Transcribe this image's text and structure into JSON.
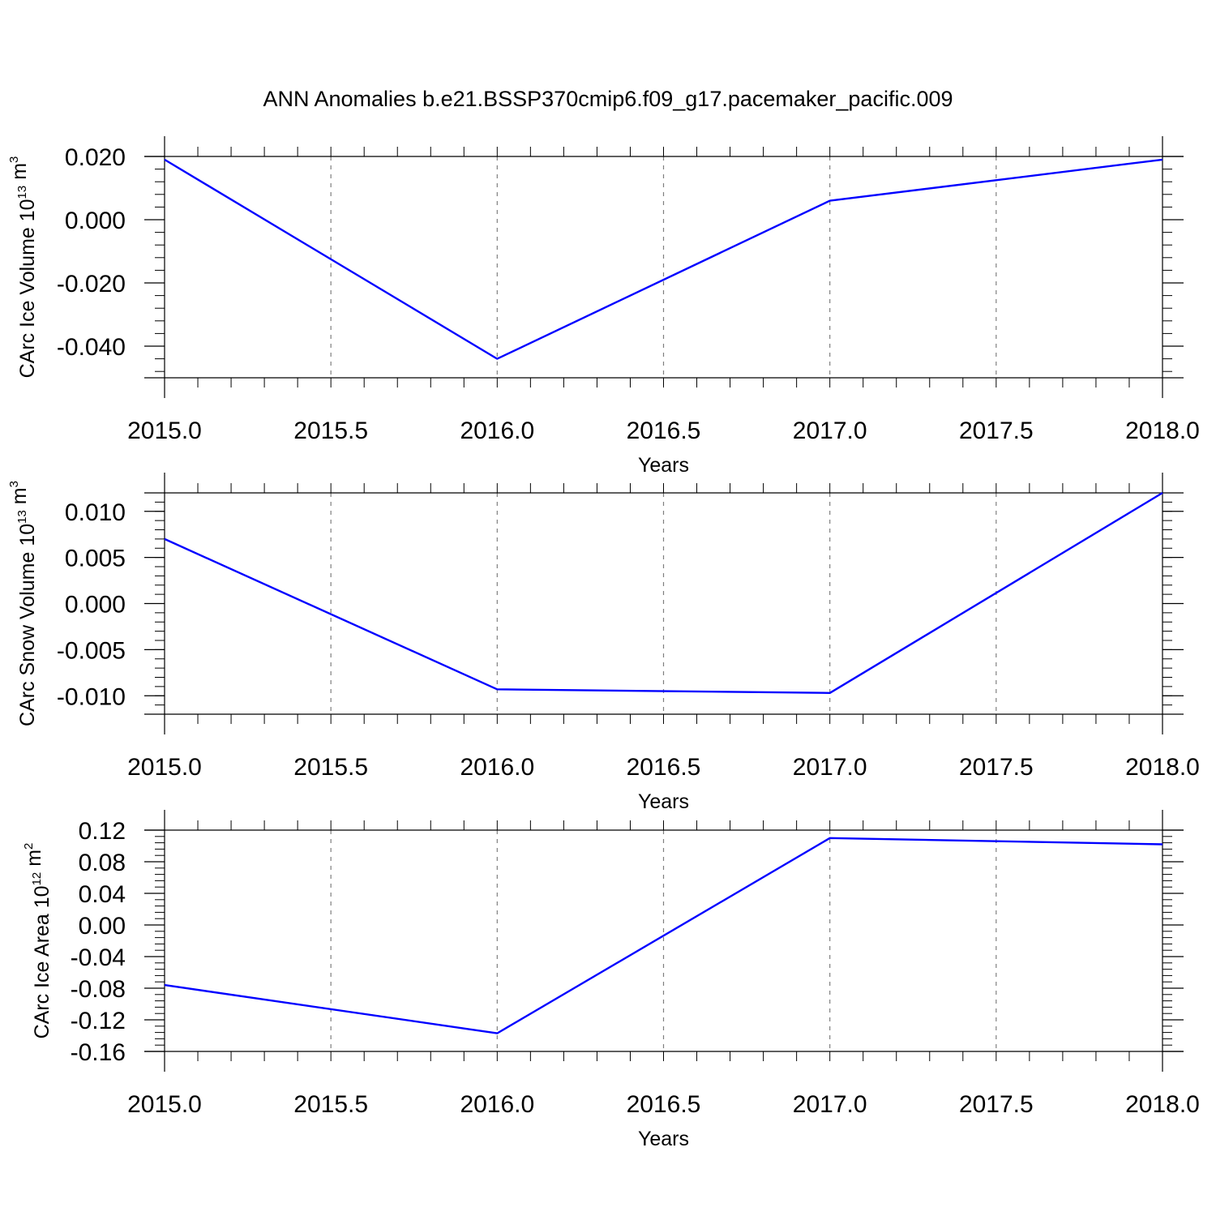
{
  "figure": {
    "title": "ANN Anomalies b.e21.BSSP370cmip6.f09_g17.pacemaker_pacific.009"
  },
  "colors": {
    "series": "#0000ff",
    "axis": "#000000",
    "grid": "#7f7f7f"
  },
  "chart_data": [
    {
      "type": "line",
      "title": "",
      "xlabel": "Years",
      "ylabel": {
        "text": "CArc Ice Volume 10",
        "sup_exp": "13",
        "unit": " m",
        "sup_unit": "3"
      },
      "x": [
        2015.0,
        2016.0,
        2017.0,
        2018.0
      ],
      "series": [
        {
          "values": [
            0.019,
            -0.044,
            0.006,
            0.019
          ]
        }
      ],
      "xlim": [
        2015.0,
        2018.0
      ],
      "ylim": [
        -0.05,
        0.02
      ],
      "xticks": [
        2015.0,
        2015.5,
        2016.0,
        2016.5,
        2017.0,
        2017.5,
        2018.0
      ],
      "xtick_labels": [
        "2015.0",
        "2015.5",
        "2016.0",
        "2016.5",
        "2017.0",
        "2017.5",
        "2018.0"
      ],
      "yticks": [
        -0.04,
        -0.02,
        0.0,
        0.02
      ],
      "ytick_labels": [
        "-0.040",
        "-0.020",
        "0.000",
        "0.020"
      ],
      "yminor_step": 0.004,
      "grid": "x-dashed"
    },
    {
      "type": "line",
      "title": "",
      "xlabel": "Years",
      "ylabel": {
        "text": "CArc Snow Volume 10",
        "sup_exp": "13",
        "unit": " m",
        "sup_unit": "3"
      },
      "x": [
        2015.0,
        2016.0,
        2017.0,
        2018.0
      ],
      "series": [
        {
          "values": [
            0.007,
            -0.0093,
            -0.0097,
            0.012
          ]
        }
      ],
      "xlim": [
        2015.0,
        2018.0
      ],
      "ylim": [
        -0.012,
        0.012
      ],
      "xticks": [
        2015.0,
        2015.5,
        2016.0,
        2016.5,
        2017.0,
        2017.5,
        2018.0
      ],
      "xtick_labels": [
        "2015.0",
        "2015.5",
        "2016.0",
        "2016.5",
        "2017.0",
        "2017.5",
        "2018.0"
      ],
      "yticks": [
        -0.01,
        -0.005,
        0.0,
        0.005,
        0.01
      ],
      "ytick_labels": [
        "-0.010",
        "-0.005",
        "0.000",
        "0.005",
        "0.010"
      ],
      "yminor_step": 0.001,
      "grid": "x-dashed"
    },
    {
      "type": "line",
      "title": "",
      "xlabel": "Years",
      "ylabel": {
        "text": "CArc Ice Area 10",
        "sup_exp": "12",
        "unit": " m",
        "sup_unit": "2"
      },
      "x": [
        2015.0,
        2016.0,
        2017.0,
        2018.0
      ],
      "series": [
        {
          "values": [
            -0.076,
            -0.137,
            0.11,
            0.102
          ]
        }
      ],
      "xlim": [
        2015.0,
        2018.0
      ],
      "ylim": [
        -0.16,
        0.12
      ],
      "xticks": [
        2015.0,
        2015.5,
        2016.0,
        2016.5,
        2017.0,
        2017.5,
        2018.0
      ],
      "xtick_labels": [
        "2015.0",
        "2015.5",
        "2016.0",
        "2016.5",
        "2017.0",
        "2017.5",
        "2018.0"
      ],
      "yticks": [
        -0.16,
        -0.12,
        -0.08,
        -0.04,
        0.0,
        0.04,
        0.08,
        0.12
      ],
      "ytick_labels": [
        "-0.16",
        "-0.12",
        "-0.08",
        "-0.04",
        "0.00",
        "0.04",
        "0.08",
        "0.12"
      ],
      "yminor_step": 0.008,
      "grid": "x-dashed"
    }
  ]
}
